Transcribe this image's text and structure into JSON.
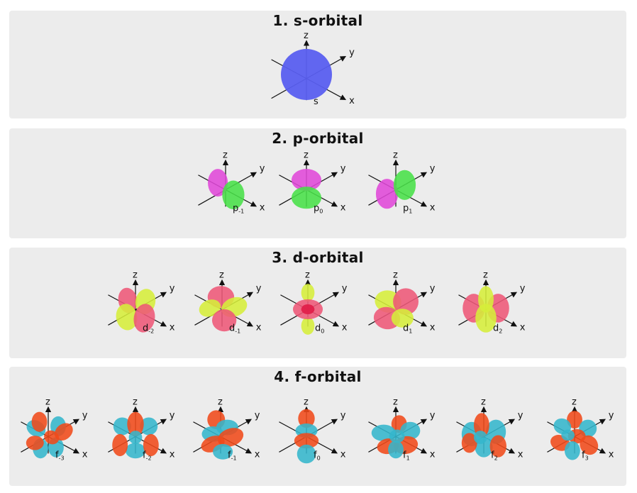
{
  "colors": {
    "s": "#5a5ff0",
    "p_positive": "#e048d8",
    "p_negative": "#48e048",
    "d_positive": "#ee5878",
    "d_negative": "#d6ee3a",
    "d_core": "#e0204a",
    "f_positive": "#f04a1a",
    "f_negative": "#34b6cc",
    "axis": "#111111",
    "panel": "#ececec"
  },
  "sections": [
    {
      "title": "1. s-orbital",
      "orbitals": [
        {
          "symbol": "s",
          "sub": "",
          "shape": "s"
        }
      ]
    },
    {
      "title": "2. p-orbital",
      "orbitals": [
        {
          "symbol": "p",
          "sub": "-1",
          "shape": "p-1"
        },
        {
          "symbol": "p",
          "sub": "0",
          "shape": "p0"
        },
        {
          "symbol": "p",
          "sub": "1",
          "shape": "p1"
        }
      ]
    },
    {
      "title": "3. d-orbital",
      "orbitals": [
        {
          "symbol": "d",
          "sub": "-2",
          "shape": "d-2"
        },
        {
          "symbol": "d",
          "sub": "-1",
          "shape": "d-1"
        },
        {
          "symbol": "d",
          "sub": "0",
          "shape": "d0"
        },
        {
          "symbol": "d",
          "sub": "1",
          "shape": "d1"
        },
        {
          "symbol": "d",
          "sub": "2",
          "shape": "d2"
        }
      ]
    },
    {
      "title": "4. f-orbital",
      "orbitals": [
        {
          "symbol": "f",
          "sub": "-3",
          "shape": "f-3"
        },
        {
          "symbol": "f",
          "sub": "-2",
          "shape": "f-2"
        },
        {
          "symbol": "f",
          "sub": "-1",
          "shape": "f-1"
        },
        {
          "symbol": "f",
          "sub": "0",
          "shape": "f0"
        },
        {
          "symbol": "f",
          "sub": "1",
          "shape": "f1"
        },
        {
          "symbol": "f",
          "sub": "2",
          "shape": "f2"
        },
        {
          "symbol": "f",
          "sub": "3",
          "shape": "f3"
        }
      ]
    }
  ],
  "axis_labels": {
    "z": "z",
    "y": "y",
    "x": "x"
  }
}
